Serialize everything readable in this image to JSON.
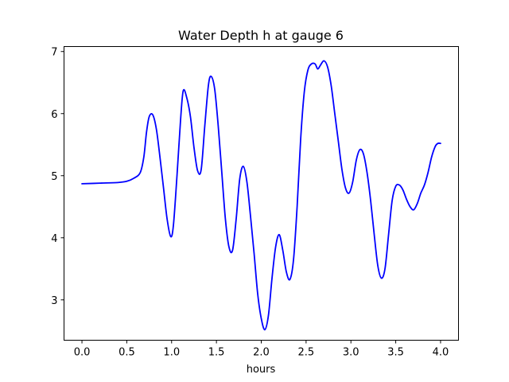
{
  "chart_data": {
    "type": "line",
    "title": "Water Depth h at gauge 6",
    "xlabel": "hours",
    "ylabel": "",
    "xlim": [
      -0.2,
      4.2
    ],
    "ylim": [
      2.35,
      7.08
    ],
    "xticks": [
      0.0,
      0.5,
      1.0,
      1.5,
      2.0,
      2.5,
      3.0,
      3.5,
      4.0
    ],
    "xtick_labels": [
      "0.0",
      "0.5",
      "1.0",
      "1.5",
      "2.0",
      "2.5",
      "3.0",
      "3.5",
      "4.0"
    ],
    "yticks": [
      3,
      4,
      5,
      6,
      7
    ],
    "ytick_labels": [
      "3",
      "4",
      "5",
      "6",
      "7"
    ],
    "grid": false,
    "series": [
      {
        "color": "#0000ff",
        "x": [
          0.0,
          0.2,
          0.4,
          0.5,
          0.58,
          0.65,
          0.69,
          0.72,
          0.75,
          0.79,
          0.83,
          0.87,
          0.91,
          0.95,
          0.99,
          1.02,
          1.06,
          1.1,
          1.13,
          1.17,
          1.21,
          1.25,
          1.29,
          1.33,
          1.37,
          1.41,
          1.44,
          1.48,
          1.52,
          1.56,
          1.6,
          1.64,
          1.68,
          1.72,
          1.76,
          1.8,
          1.84,
          1.88,
          1.92,
          1.96,
          2.0,
          2.04,
          2.08,
          2.12,
          2.16,
          2.2,
          2.24,
          2.28,
          2.32,
          2.36,
          2.4,
          2.44,
          2.48,
          2.52,
          2.56,
          2.6,
          2.63,
          2.66,
          2.7,
          2.74,
          2.78,
          2.82,
          2.86,
          2.9,
          2.94,
          2.98,
          3.02,
          3.06,
          3.1,
          3.14,
          3.18,
          3.22,
          3.26,
          3.3,
          3.34,
          3.38,
          3.42,
          3.46,
          3.5,
          3.54,
          3.58,
          3.62,
          3.66,
          3.7,
          3.74,
          3.78,
          3.82,
          3.86,
          3.9,
          3.94,
          3.97,
          4.0
        ],
        "y": [
          4.87,
          4.88,
          4.89,
          4.91,
          4.96,
          5.05,
          5.3,
          5.7,
          5.95,
          5.98,
          5.75,
          5.3,
          4.8,
          4.3,
          4.02,
          4.2,
          5.0,
          5.9,
          6.37,
          6.25,
          5.95,
          5.45,
          5.08,
          5.1,
          5.8,
          6.45,
          6.6,
          6.4,
          5.8,
          5.05,
          4.3,
          3.85,
          3.8,
          4.3,
          4.95,
          5.15,
          4.9,
          4.35,
          3.75,
          3.1,
          2.7,
          2.52,
          2.75,
          3.35,
          3.85,
          4.05,
          3.8,
          3.45,
          3.33,
          3.65,
          4.5,
          5.6,
          6.35,
          6.7,
          6.8,
          6.8,
          6.72,
          6.78,
          6.85,
          6.75,
          6.45,
          6.0,
          5.55,
          5.1,
          4.8,
          4.72,
          4.9,
          5.25,
          5.42,
          5.35,
          5.05,
          4.6,
          4.05,
          3.55,
          3.35,
          3.5,
          4.05,
          4.6,
          4.83,
          4.85,
          4.77,
          4.62,
          4.5,
          4.45,
          4.55,
          4.72,
          4.85,
          5.05,
          5.3,
          5.47,
          5.52,
          5.52
        ]
      }
    ]
  }
}
